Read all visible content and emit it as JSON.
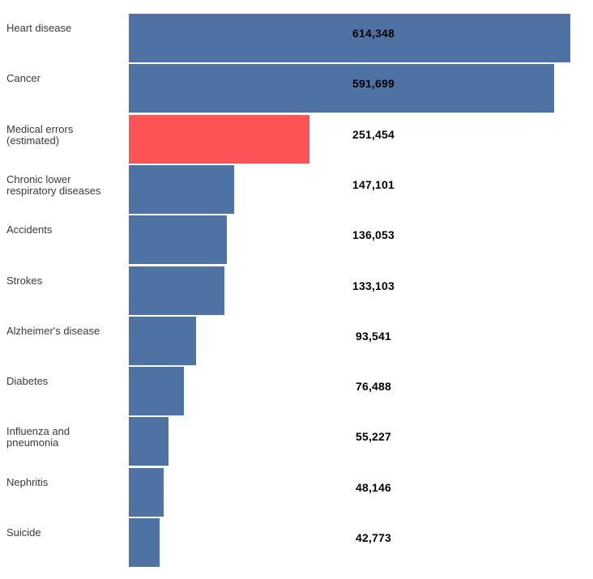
{
  "chart_data": {
    "type": "bar",
    "orientation": "horizontal",
    "title": "",
    "xlabel": "",
    "ylabel": "",
    "grid": false,
    "legend": false,
    "xlim": [
      0,
      614348
    ],
    "categories": [
      "Heart disease",
      "Cancer",
      "Medical errors\n(estimated)",
      "Chronic lower\nrespiratory diseases",
      "Accidents",
      "Strokes",
      "Alzheimer's disease",
      "Diabetes",
      "Influenza and\npneumonia",
      "Nephritis",
      "Suicide"
    ],
    "values": [
      614348,
      591699,
      251454,
      147101,
      136053,
      133103,
      93541,
      76488,
      55227,
      48146,
      42773
    ],
    "value_labels": [
      "614,348",
      "591,699",
      "251,454",
      "147,101",
      "136,053",
      "133,103",
      "93,541",
      "76,488",
      "55,227",
      "48,146",
      "42,773"
    ],
    "highlight_index": 2,
    "colors": {
      "bar": "#4d72a3",
      "highlight": "#fe5356",
      "value_text": "#000000",
      "category_text": "#3b3b3b",
      "background": "#ffffff"
    }
  }
}
